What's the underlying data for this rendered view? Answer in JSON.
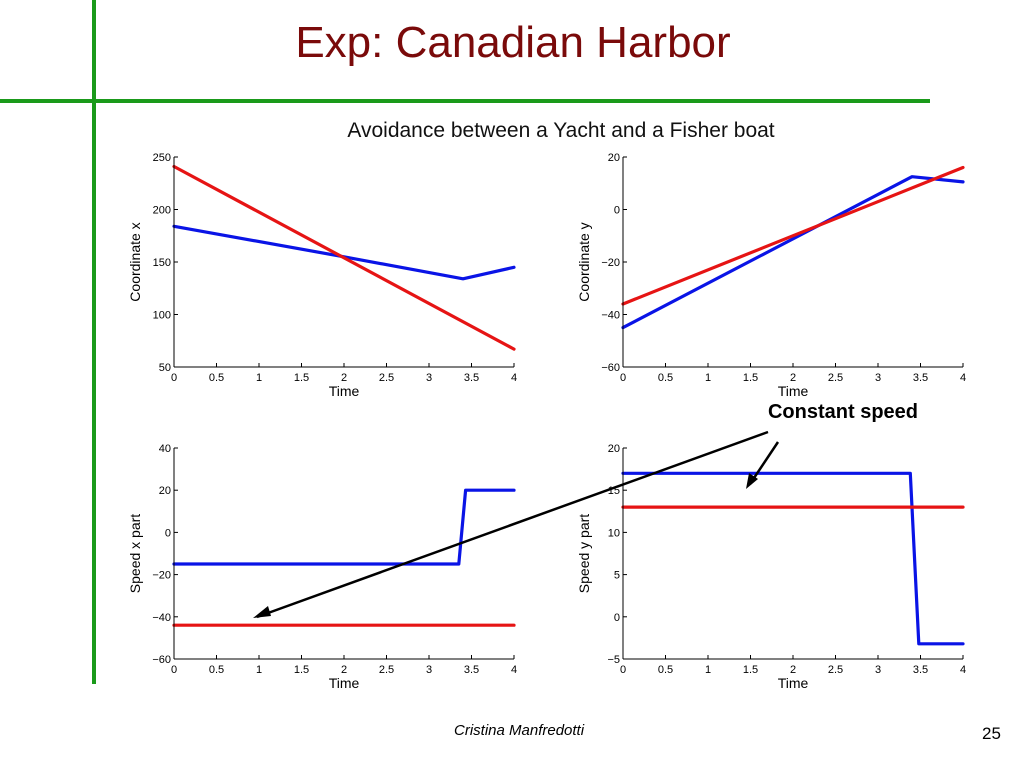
{
  "slide": {
    "title": "Exp: Canadian Harbor",
    "author": "Cristina Manfredotti",
    "page_number": "25",
    "figure_title": "Avoidance between a Yacht and a Fisher boat",
    "annotation": "Constant speed",
    "colors": {
      "rule_lines": "#1a9a1a",
      "title": "#7a0a0a",
      "series_blue": "#0a14e6",
      "series_red": "#e61414"
    }
  },
  "chart_data": [
    {
      "type": "line",
      "xlabel": "Time",
      "ylabel": "Coordinate x",
      "xlim": [
        0,
        4
      ],
      "ylim": [
        50,
        250
      ],
      "xticks": [
        0,
        0.5,
        1,
        1.5,
        2,
        2.5,
        3,
        3.5,
        4
      ],
      "xtick_labels": [
        "0",
        "0.5",
        "1",
        "1.5",
        "2",
        "2.5",
        "3",
        "3.5",
        "4"
      ],
      "yticks": [
        50,
        100,
        150,
        200,
        250
      ],
      "ytick_labels": [
        "50",
        "100",
        "150",
        "200",
        "250"
      ],
      "grid": false,
      "series": [
        {
          "color": "#0a14e6",
          "x": [
            0,
            2,
            3.4,
            4
          ],
          "y": [
            184,
            155,
            134,
            145
          ]
        },
        {
          "color": "#e61414",
          "x": [
            0,
            4
          ],
          "y": [
            241,
            67
          ]
        }
      ]
    },
    {
      "type": "line",
      "xlabel": "Time",
      "ylabel": "Coordinate y",
      "xlim": [
        0,
        4
      ],
      "ylim": [
        -60,
        20
      ],
      "xticks": [
        0,
        0.5,
        1,
        1.5,
        2,
        2.5,
        3,
        3.5,
        4
      ],
      "xtick_labels": [
        "0",
        "0.5",
        "1",
        "1.5",
        "2",
        "2.5",
        "3",
        "3.5",
        "4"
      ],
      "yticks": [
        -60,
        -40,
        -20,
        0,
        20
      ],
      "ytick_labels": [
        "−60",
        "−40",
        "−20",
        "0",
        "20"
      ],
      "grid": false,
      "series": [
        {
          "color": "#0a14e6",
          "x": [
            0,
            3.4,
            4
          ],
          "y": [
            -45,
            12.5,
            10.5
          ]
        },
        {
          "color": "#e61414",
          "x": [
            0,
            4
          ],
          "y": [
            -36,
            16
          ]
        }
      ]
    },
    {
      "type": "line",
      "xlabel": "Time",
      "ylabel": "Speed x part",
      "xlim": [
        0,
        4
      ],
      "ylim": [
        -60,
        40
      ],
      "xticks": [
        0,
        0.5,
        1,
        1.5,
        2,
        2.5,
        3,
        3.5,
        4
      ],
      "xtick_labels": [
        "0",
        "0.5",
        "1",
        "1.5",
        "2",
        "2.5",
        "3",
        "3.5",
        "4"
      ],
      "yticks": [
        -60,
        -40,
        -20,
        0,
        20,
        40
      ],
      "ytick_labels": [
        "−60",
        "−40",
        "−20",
        "0",
        "20",
        "40"
      ],
      "grid": false,
      "series": [
        {
          "color": "#0a14e6",
          "x": [
            0,
            3.35,
            3.43,
            4
          ],
          "y": [
            -15,
            -15,
            20,
            20
          ]
        },
        {
          "color": "#e61414",
          "x": [
            0,
            4
          ],
          "y": [
            -44,
            -44
          ]
        }
      ]
    },
    {
      "type": "line",
      "xlabel": "Time",
      "ylabel": "Speed y part",
      "xlim": [
        0,
        4
      ],
      "ylim": [
        -5,
        20
      ],
      "xticks": [
        0,
        0.5,
        1,
        1.5,
        2,
        2.5,
        3,
        3.5,
        4
      ],
      "xtick_labels": [
        "0",
        "0.5",
        "1",
        "1.5",
        "2",
        "2.5",
        "3",
        "3.5",
        "4"
      ],
      "yticks": [
        -5,
        0,
        5,
        10,
        15,
        20
      ],
      "ytick_labels": [
        "−5",
        "0",
        "5",
        "10",
        "15",
        "20"
      ],
      "grid": false,
      "series": [
        {
          "color": "#0a14e6",
          "x": [
            0,
            3.38,
            3.48,
            4
          ],
          "y": [
            17,
            17,
            -3.2,
            -3.2
          ]
        },
        {
          "color": "#e61414",
          "x": [
            0,
            4
          ],
          "y": [
            13,
            13
          ]
        }
      ]
    }
  ]
}
